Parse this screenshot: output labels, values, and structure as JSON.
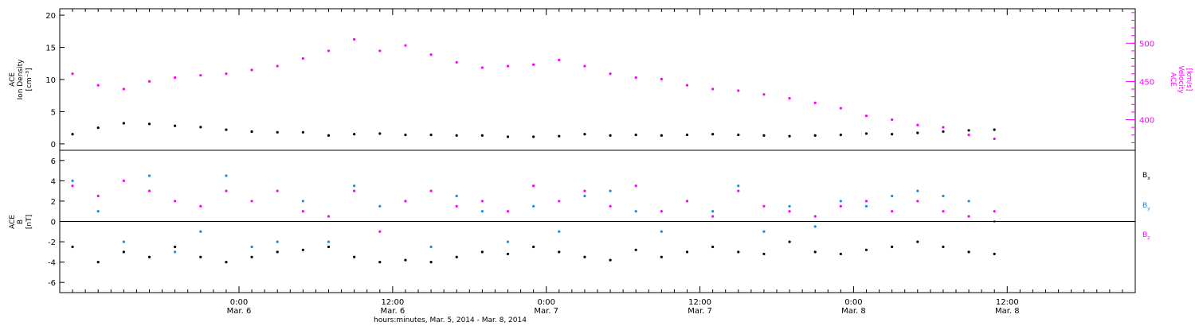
{
  "chart_data": [
    {
      "type": "scatter",
      "panel": "top",
      "ylabel_left": [
        "ACE",
        "Ion Density",
        "[cm⁻³]"
      ],
      "ylabel_right": [
        "ACE",
        "Velocity",
        "[km/s]"
      ],
      "ylim_left": [
        -1,
        21
      ],
      "yticks_left": [
        0,
        5,
        10,
        15,
        20
      ],
      "ylim_right": [
        360,
        545
      ],
      "yticks_right": [
        400,
        450,
        500
      ],
      "series": [
        {
          "axis": "left",
          "color": "#000000",
          "x": [
            0,
            2,
            4,
            6,
            8,
            10,
            12,
            14,
            16,
            18,
            20,
            22,
            24,
            26,
            28,
            30,
            32,
            34,
            36,
            38,
            40,
            42,
            44,
            46,
            48,
            50,
            52,
            54,
            56,
            58,
            60,
            62,
            64,
            66,
            68,
            70,
            72
          ],
          "values": [
            1.5,
            2.5,
            3.2,
            3.1,
            2.8,
            2.6,
            2.2,
            1.9,
            1.8,
            1.8,
            1.3,
            1.5,
            1.6,
            1.4,
            1.4,
            1.3,
            1.3,
            1.1,
            1.1,
            1.2,
            1.5,
            1.3,
            1.4,
            1.3,
            1.4,
            1.5,
            1.4,
            1.3,
            1.2,
            1.3,
            1.4,
            1.6,
            1.5,
            1.7,
            1.9,
            2.1,
            2.2
          ]
        },
        {
          "axis": "right",
          "color": "#ff00ff",
          "x": [
            0,
            2,
            4,
            6,
            8,
            10,
            12,
            14,
            16,
            18,
            20,
            22,
            24,
            26,
            28,
            30,
            32,
            34,
            36,
            38,
            40,
            42,
            44,
            46,
            48,
            50,
            52,
            54,
            56,
            58,
            60,
            62,
            64,
            66,
            68,
            70,
            72
          ],
          "values": [
            460,
            445,
            440,
            450,
            455,
            458,
            460,
            465,
            470,
            480,
            490,
            505,
            490,
            497,
            485,
            475,
            468,
            470,
            472,
            478,
            470,
            460,
            455,
            453,
            445,
            440,
            438,
            433,
            428,
            422,
            415,
            405,
            400,
            393,
            390,
            380,
            375
          ]
        }
      ]
    },
    {
      "type": "scatter",
      "panel": "bottom",
      "ylabel": [
        "ACE",
        "B",
        "[nT]"
      ],
      "ylim": [
        -7,
        7
      ],
      "yticks": [
        -6,
        -4,
        -2,
        0,
        2,
        4,
        6
      ],
      "zero_line": true,
      "x_tick_labels": [
        {
          "x": 13,
          "time": "0:00",
          "date": "Mar. 6"
        },
        {
          "x": 25,
          "time": "12:00",
          "date": "Mar. 6"
        },
        {
          "x": 37,
          "time": "0:00",
          "date": "Mar. 7"
        },
        {
          "x": 49,
          "time": "12:00",
          "date": "Mar. 7"
        },
        {
          "x": 61,
          "time": "0:00",
          "date": "Mar. 8"
        },
        {
          "x": 73,
          "time": "12:00",
          "date": "Mar. 8"
        }
      ],
      "xlim": [
        -1,
        83
      ],
      "series": [
        {
          "name": "Bx",
          "color": "#000000",
          "x": [
            0,
            2,
            4,
            6,
            8,
            10,
            12,
            14,
            16,
            18,
            20,
            22,
            24,
            26,
            28,
            30,
            32,
            34,
            36,
            38,
            40,
            42,
            44,
            46,
            48,
            50,
            52,
            54,
            56,
            58,
            60,
            62,
            64,
            66,
            68,
            70,
            72
          ],
          "values": [
            -2.5,
            -4.0,
            -3.0,
            -3.5,
            -2.5,
            -3.5,
            -4.0,
            -3.5,
            -3.0,
            -2.8,
            -2.5,
            -3.5,
            -4.0,
            -3.8,
            -4.0,
            -3.5,
            -3.0,
            -3.2,
            -2.5,
            -3.0,
            -3.5,
            -3.8,
            -2.8,
            -3.5,
            -3.0,
            -2.5,
            -3.0,
            -3.2,
            -2.0,
            -3.0,
            -3.2,
            -2.8,
            -2.5,
            -2.0,
            -2.5,
            -3.0,
            -3.2
          ]
        },
        {
          "name": "By",
          "color": "#1b8be0",
          "x": [
            0,
            2,
            4,
            6,
            8,
            10,
            12,
            14,
            16,
            18,
            20,
            22,
            24,
            26,
            28,
            30,
            32,
            34,
            36,
            38,
            40,
            42,
            44,
            46,
            48,
            50,
            52,
            54,
            56,
            58,
            60,
            62,
            64,
            66,
            68,
            70,
            72
          ],
          "values": [
            4.0,
            1.0,
            -2.0,
            4.5,
            -3.0,
            -1.0,
            4.5,
            -2.5,
            -2.0,
            2.0,
            -2.0,
            3.5,
            1.5,
            2.0,
            -2.5,
            2.5,
            1.0,
            -2.0,
            1.5,
            -1.0,
            2.5,
            3.0,
            1.0,
            -1.0,
            2.0,
            1.0,
            3.5,
            -1.0,
            1.5,
            -0.5,
            2.0,
            1.5,
            2.5,
            3.0,
            2.5,
            2.0,
            0.0
          ]
        },
        {
          "name": "Bz",
          "color": "#ff00ff",
          "x": [
            0,
            2,
            4,
            6,
            8,
            10,
            12,
            14,
            16,
            18,
            20,
            22,
            24,
            26,
            28,
            30,
            32,
            34,
            36,
            38,
            40,
            42,
            44,
            46,
            48,
            50,
            52,
            54,
            56,
            58,
            60,
            62,
            64,
            66,
            68,
            70,
            72
          ],
          "values": [
            3.5,
            2.5,
            4.0,
            3.0,
            2.0,
            1.5,
            3.0,
            2.0,
            3.0,
            1.0,
            0.5,
            3.0,
            -1.0,
            2.0,
            3.0,
            1.5,
            2.0,
            1.0,
            3.5,
            2.0,
            3.0,
            1.5,
            3.5,
            1.0,
            2.0,
            0.5,
            3.0,
            1.5,
            1.0,
            0.5,
            1.5,
            2.0,
            1.0,
            2.0,
            1.0,
            0.5,
            1.0
          ]
        }
      ],
      "legend": [
        "B",
        "B",
        "B"
      ],
      "legend_subscripts": [
        "x",
        "y",
        "z"
      ],
      "xlabel": "hours:minutes, Mar. 5, 2014 - Mar. 8, 2014"
    }
  ]
}
